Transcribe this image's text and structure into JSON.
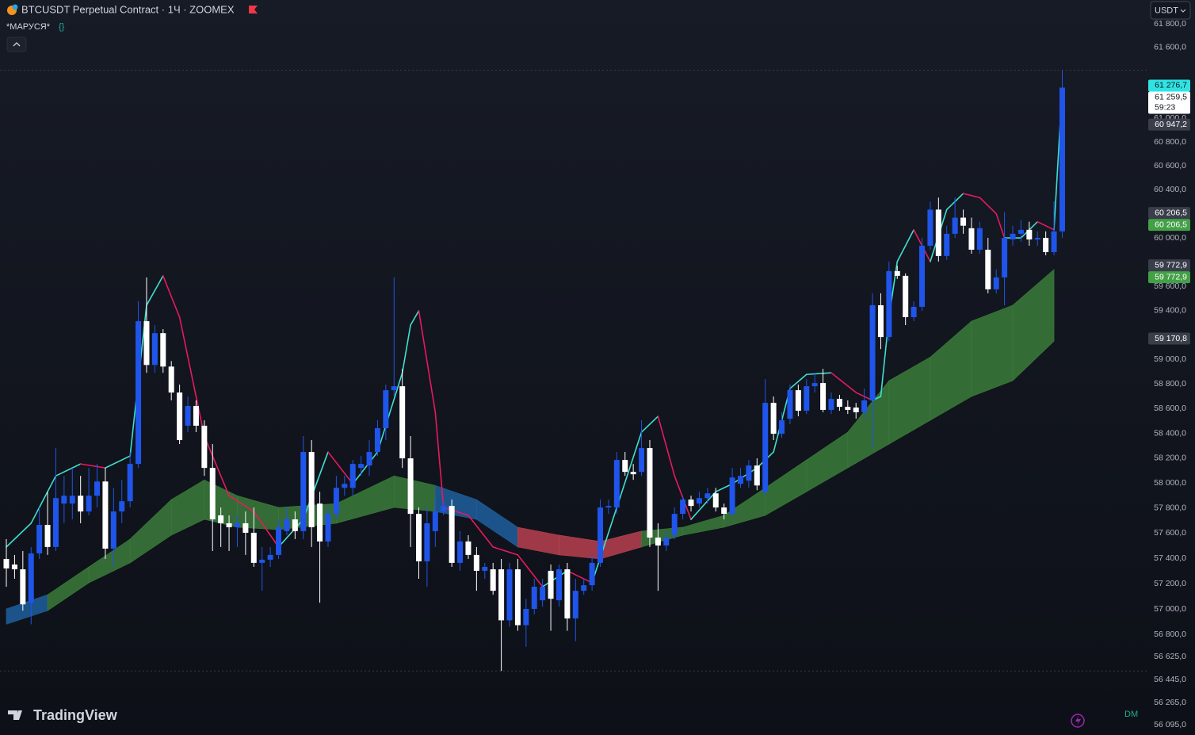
{
  "header": {
    "symbol_title": "BTCUSDT Perpetual Contract · 1Ч · ZOOMEX",
    "indicator": "*МАРУСЯ*",
    "currency": "USDT",
    "brand": "TradingView",
    "corner_text": "DM"
  },
  "chart_data": {
    "type": "candlestick",
    "log_scale": true,
    "grid": false,
    "ylim": [
      56015,
      62006
    ],
    "yticks": [
      {
        "value": 61800,
        "label": "61 800,0"
      },
      {
        "value": 61600,
        "label": "61 600,0"
      },
      {
        "value": 61000,
        "label": "61 000,0"
      },
      {
        "value": 60800,
        "label": "60 800,0"
      },
      {
        "value": 60600,
        "label": "60 600,0"
      },
      {
        "value": 60400,
        "label": "60 400,0"
      },
      {
        "value": 60000,
        "label": "60 000,0"
      },
      {
        "value": 59600,
        "label": "59 600,0"
      },
      {
        "value": 59400,
        "label": "59 400,0"
      },
      {
        "value": 59000,
        "label": "59 000,0"
      },
      {
        "value": 58800,
        "label": "58 800,0"
      },
      {
        "value": 58600,
        "label": "58 600,0"
      },
      {
        "value": 58400,
        "label": "58 400,0"
      },
      {
        "value": 58200,
        "label": "58 200,0"
      },
      {
        "value": 58000,
        "label": "58 000,0"
      },
      {
        "value": 57800,
        "label": "57 800,0"
      },
      {
        "value": 57600,
        "label": "57 600,0"
      },
      {
        "value": 57400,
        "label": "57 400,0"
      },
      {
        "value": 57200,
        "label": "57 200,0"
      },
      {
        "value": 57000,
        "label": "57 000,0"
      },
      {
        "value": 56800,
        "label": "56 800,0"
      },
      {
        "value": 56625,
        "label": "56 625,0"
      },
      {
        "value": 56445,
        "label": "56 445,0"
      },
      {
        "value": 56265,
        "label": "56 265,0"
      },
      {
        "value": 56095,
        "label": "56 095,0"
      }
    ],
    "up_color": "#1f55ea",
    "down_color": "#ffffff",
    "open": [
      57395,
      57351,
      57313,
      57049,
      57439,
      57666,
      57490,
      57836,
      57836,
      57899,
      57773,
      57899,
      58013,
      57477,
      57773,
      57855,
      58154,
      59313,
      58955,
      59215,
      58942,
      58731,
      58462,
      58622,
      58462,
      58122,
      57742,
      57679,
      57647,
      57679,
      57603,
      57364,
      57389,
      57427,
      57616,
      57710,
      57616,
      58250,
      57836,
      57534,
      57754,
      57962,
      57962,
      58122,
      58141,
      58250,
      58442,
      58750,
      58782,
      58199,
      57754,
      57376,
      57616,
      57773,
      57817,
      57364,
      57534,
      57427,
      57301,
      57313,
      57313,
      56910,
      57313,
      56872,
      57000,
      57068,
      57301,
      57068,
      57313,
      56925,
      57143,
      57187,
      57364,
      57805,
      57805,
      58186,
      58090,
      58090,
      58282,
      57565,
      57502,
      57584,
      57754,
      57868,
      57836,
      57880,
      57918,
      57805,
      57754,
      57994,
      58019,
      58141,
      57931,
      58647,
      58397,
      58519,
      58750,
      58583,
      58782,
      58808,
      58590,
      58679,
      58615,
      58609,
      58571,
      58667,
      59444,
      59183,
      59725,
      59686,
      59346,
      59431,
      59935,
      60235,
      59850,
      60034,
      60168,
      60080,
      59902,
      59902,
      59575,
      59673,
      59987,
      60034,
      60067,
      59987,
      60000,
      59882,
      60054
    ],
    "high": [
      57553,
      57427,
      57458,
      57490,
      57805,
      57931,
      58282,
      58058,
      58122,
      58058,
      58122,
      58154,
      58122,
      57962,
      58026,
      58250,
      59477,
      59673,
      59281,
      59248,
      58987,
      58795,
      58699,
      58667,
      58506,
      58314,
      57805,
      57742,
      57742,
      57773,
      57805,
      57490,
      57490,
      57710,
      57805,
      57773,
      58378,
      58346,
      57931,
      57805,
      58058,
      58058,
      58186,
      58218,
      58346,
      58506,
      58795,
      59673,
      58923,
      58378,
      57805,
      57805,
      57868,
      57868,
      57868,
      57616,
      57584,
      57490,
      57364,
      57364,
      57395,
      57364,
      57395,
      57080,
      57238,
      57238,
      57351,
      57351,
      57364,
      57238,
      57238,
      57427,
      57868,
      57868,
      58250,
      58250,
      58154,
      58506,
      58346,
      57679,
      57616,
      57805,
      57899,
      57899,
      57931,
      57962,
      57962,
      57836,
      58122,
      58122,
      58186,
      58199,
      58840,
      58699,
      58571,
      58795,
      58795,
      58840,
      58891,
      58923,
      58731,
      58712,
      58667,
      58647,
      58763,
      59542,
      59542,
      59804,
      59771,
      59706,
      59477,
      60000,
      60302,
      60335,
      60101,
      60335,
      60235,
      60168,
      60134,
      60000,
      59738,
      60214,
      60101,
      60147,
      60134,
      60054,
      60054,
      60302,
      61407
    ],
    "low": [
      57175,
      57238,
      56986,
      56879,
      57395,
      57427,
      57458,
      57679,
      57710,
      57679,
      57742,
      57805,
      57395,
      57332,
      57679,
      57805,
      58122,
      58891,
      58891,
      58891,
      58667,
      58314,
      58410,
      58410,
      58058,
      57458,
      57490,
      57458,
      57490,
      57427,
      57332,
      57143,
      57332,
      57395,
      57584,
      57553,
      57553,
      57490,
      57049,
      57490,
      57710,
      57899,
      57899,
      58058,
      58058,
      58218,
      58346,
      58699,
      58122,
      57490,
      57238,
      57175,
      57490,
      57742,
      57332,
      57301,
      57395,
      57143,
      57238,
      57112,
      56513,
      56860,
      56828,
      56702,
      56956,
      57017,
      56828,
      57017,
      56828,
      56746,
      57112,
      57143,
      57332,
      57754,
      57754,
      58058,
      58026,
      58058,
      57490,
      57143,
      57458,
      57553,
      57710,
      57773,
      57805,
      57836,
      57773,
      57710,
      57729,
      57962,
      57962,
      57943,
      57899,
      58346,
      58365,
      58474,
      58538,
      58557,
      58731,
      58571,
      58557,
      58583,
      58557,
      58519,
      58519,
      58282,
      59085,
      59150,
      59660,
      59281,
      59313,
      59398,
      59902,
      59804,
      59817,
      60000,
      60034,
      59869,
      59869,
      59542,
      59542,
      59444,
      59935,
      59967,
      59935,
      59935,
      59856,
      59856,
      60000
    ],
    "close": [
      57320,
      57313,
      57036,
      57439,
      57666,
      57490,
      57880,
      57899,
      57899,
      57773,
      57899,
      58013,
      57477,
      57773,
      57855,
      58154,
      59313,
      58955,
      59215,
      58942,
      58731,
      58346,
      58622,
      58462,
      58122,
      57710,
      57679,
      57647,
      57679,
      57603,
      57364,
      57389,
      57427,
      57647,
      57710,
      57616,
      58250,
      57647,
      57534,
      57754,
      57962,
      57994,
      58154,
      58154,
      58250,
      58442,
      58750,
      58782,
      58199,
      57754,
      57376,
      57679,
      57773,
      57817,
      57364,
      57534,
      57427,
      57301,
      57332,
      57143,
      56910,
      57313,
      56872,
      57000,
      57175,
      57175,
      57080,
      57313,
      56925,
      57143,
      57187,
      57364,
      57805,
      57817,
      58186,
      58090,
      58071,
      58282,
      57565,
      57502,
      57565,
      57754,
      57868,
      57817,
      57880,
      57918,
      57805,
      57754,
      58045,
      58058,
      58141,
      57981,
      58647,
      58397,
      58506,
      58750,
      58583,
      58782,
      58808,
      58590,
      58679,
      58615,
      58590,
      58571,
      58667,
      59444,
      59183,
      59725,
      59686,
      59346,
      59431,
      59935,
      60235,
      59850,
      60034,
      60168,
      60101,
      59902,
      60080,
      59575,
      59673,
      60000,
      60034,
      60067,
      59987,
      60000,
      59882,
      60054,
      61259.5
    ],
    "ribbon": {
      "x": [
        0,
        5,
        10,
        15,
        20,
        24,
        28,
        33,
        40,
        47,
        52,
        57,
        62,
        67,
        72,
        77,
        82,
        87,
        92,
        97,
        102,
        107,
        112,
        117,
        122,
        127
      ],
      "upper": [
        57000,
        57112,
        57332,
        57553,
        57868,
        58026,
        57899,
        57805,
        57836,
        58058,
        57981,
        57868,
        57647,
        57584,
        57534,
        57616,
        57647,
        57742,
        57962,
        58186,
        58410,
        58827,
        59019,
        59313,
        59444,
        59738
      ],
      "lower": [
        56879,
        56986,
        57206,
        57364,
        57584,
        57710,
        57647,
        57628,
        57679,
        57805,
        57773,
        57710,
        57490,
        57427,
        57395,
        57490,
        57584,
        57647,
        57742,
        57931,
        58122,
        58314,
        58506,
        58699,
        58827,
        59150
      ],
      "colors": [
        "#1f5f9e",
        "#3b7b3b",
        "#3b7b3b",
        "#3b7b3b",
        "#3b7b3b",
        "#3b7b3b",
        "#3b7b3b",
        "#3b7b3b",
        "#3b7b3b",
        "#3b7b3b",
        "#1f5f9e",
        "#1f5f9e",
        "#b8414f",
        "#b8414f",
        "#b8414f",
        "#3b7b3b",
        "#3b7b3b",
        "#3b7b3b",
        "#3b7b3b",
        "#3b7b3b",
        "#3b7b3b",
        "#3b7b3b",
        "#3b7b3b",
        "#3b7b3b",
        "#3b7b3b"
      ]
    },
    "fast_line": {
      "x": [
        0,
        3,
        6,
        9,
        12,
        15,
        17,
        19,
        21,
        24,
        27,
        30,
        33,
        36,
        39,
        42,
        45,
        48,
        49,
        50,
        52,
        53,
        56,
        59,
        62,
        65,
        68,
        71,
        74,
        77,
        79,
        81,
        83,
        86,
        88,
        91,
        93,
        95,
        97,
        100,
        103,
        105,
        106,
        107,
        108,
        110,
        112,
        114,
        116,
        118,
        120,
        121,
        123,
        125,
        127,
        128
      ],
      "values": [
        57490,
        57679,
        58058,
        58154,
        58122,
        58218,
        59444,
        59686,
        59346,
        58378,
        57899,
        57773,
        57490,
        57710,
        58250,
        57994,
        58250,
        58891,
        59281,
        59398,
        58571,
        57805,
        57742,
        57490,
        57427,
        57175,
        57301,
        57206,
        57805,
        58410,
        58538,
        58058,
        57710,
        57931,
        57994,
        58122,
        58250,
        58763,
        58878,
        58891,
        58731,
        58667,
        58699,
        59346,
        59804,
        60067,
        59804,
        60235,
        60369,
        60335,
        60201,
        60000,
        60000,
        60134,
        60067,
        61253
      ],
      "up_color": "#3fe0d0",
      "down_color": "#e8195e"
    },
    "price_labels": [
      {
        "value": 61276.7,
        "label": "61 276,7",
        "color": "#2fe3e3",
        "text_color": "#0f1420"
      },
      {
        "value": 61259.5,
        "label": "61 259,5",
        "countdown": "59:23",
        "color": "#ffffff",
        "text_color": "#131722"
      },
      {
        "value": 60947.2,
        "label": "60 947,2",
        "color": "#3a3e4a",
        "text_color": "#ffffff"
      },
      {
        "value": 60206.5,
        "label": "60 206,5",
        "color": "#3a3e4a",
        "text_color": "#ffffff"
      },
      {
        "value": 60206.5,
        "label": "60 206,5",
        "color": "#43a047",
        "text_color": "#ffffff"
      },
      {
        "value": 59772.9,
        "label": "59 772,9",
        "color": "#3a3e4a",
        "text_color": "#ffffff"
      },
      {
        "value": 59772.9,
        "label": "59 772,9",
        "color": "#43a047",
        "text_color": "#ffffff"
      },
      {
        "value": 59170.8,
        "label": "59 170,8",
        "color": "#3a3e4a",
        "text_color": "#ffffff"
      }
    ]
  }
}
